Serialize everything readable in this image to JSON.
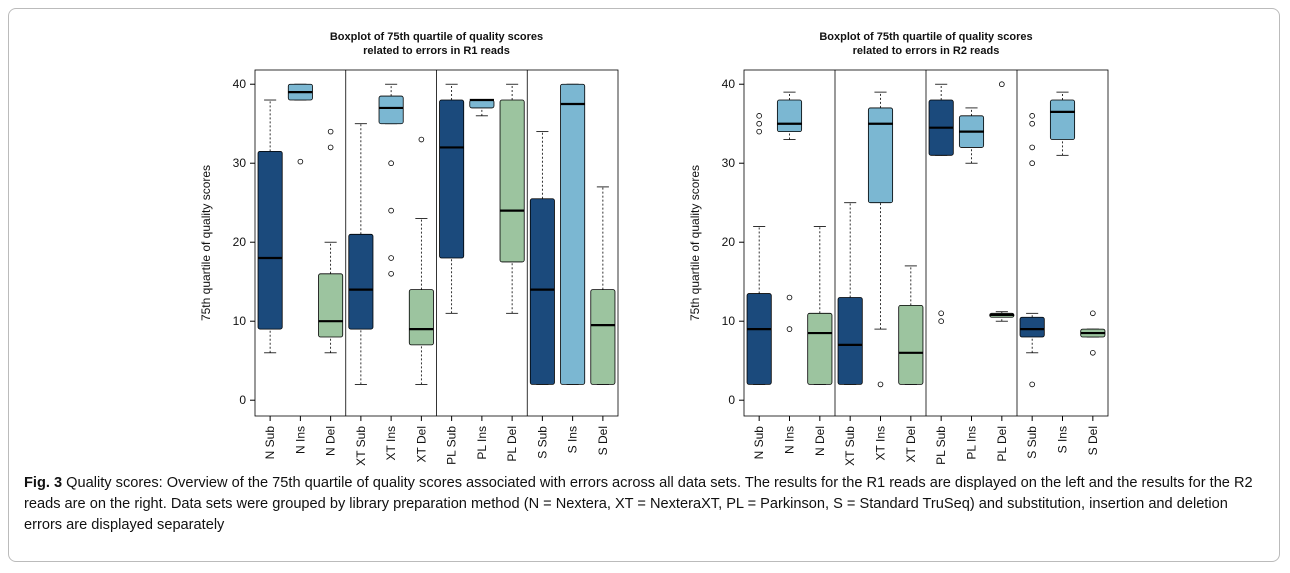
{
  "chart_data": [
    {
      "type": "box",
      "title": [
        "Boxplot of 75th quartile of quality scores",
        "related to errors in R1 reads"
      ],
      "ylabel": "75th quartile of quality scores",
      "categories": [
        "N Sub",
        "N Ins",
        "N Del",
        "XT Sub",
        "XT Ins",
        "XT Del",
        "PL Sub",
        "PL Ins",
        "PL Del",
        "S Sub",
        "S Ins",
        "S Del"
      ],
      "palette": [
        "#1b4a7c",
        "#7bb7d2",
        "#9cc49f"
      ],
      "ylim": [
        -2,
        41.8
      ],
      "yticks": [
        0,
        10,
        20,
        30,
        40
      ],
      "boxes": [
        {
          "min": 6,
          "q1": 9,
          "median": 18,
          "q3": 31.5,
          "max": 38,
          "outliers": []
        },
        {
          "min": 38,
          "q1": 38,
          "median": 39,
          "q3": 40,
          "max": 40,
          "outliers": [
            30.2
          ]
        },
        {
          "min": 6,
          "q1": 8,
          "median": 10,
          "q3": 16,
          "max": 20,
          "outliers": [
            32,
            34
          ]
        },
        {
          "min": 2,
          "q1": 9,
          "median": 14,
          "q3": 21,
          "max": 35,
          "outliers": []
        },
        {
          "min": 35,
          "q1": 35,
          "median": 37,
          "q3": 38.5,
          "max": 40,
          "outliers": [
            30,
            24,
            18,
            16
          ]
        },
        {
          "min": 2,
          "q1": 7,
          "median": 9,
          "q3": 14,
          "max": 23,
          "outliers": [
            33
          ]
        },
        {
          "min": 11,
          "q1": 18,
          "median": 32,
          "q3": 38,
          "max": 40,
          "outliers": []
        },
        {
          "min": 36,
          "q1": 37,
          "median": 38,
          "q3": 38,
          "max": 38,
          "outliers": []
        },
        {
          "min": 11,
          "q1": 17.5,
          "median": 24,
          "q3": 38,
          "max": 40,
          "outliers": []
        },
        {
          "min": 2,
          "q1": 2,
          "median": 14,
          "q3": 25.5,
          "max": 34,
          "outliers": []
        },
        {
          "min": 2,
          "q1": 2,
          "median": 37.5,
          "q3": 40,
          "max": 40,
          "outliers": []
        },
        {
          "min": 2,
          "q1": 2,
          "median": 9.5,
          "q3": 14,
          "max": 27,
          "outliers": []
        }
      ]
    },
    {
      "type": "box",
      "title": [
        "Boxplot of 75th quartile of quality scores",
        "related to errors in R2 reads"
      ],
      "ylabel": "75th quartile of quality scores",
      "categories": [
        "N Sub",
        "N Ins",
        "N Del",
        "XT Sub",
        "XT Ins",
        "XT Del",
        "PL Sub",
        "PL Ins",
        "PL Del",
        "S Sub",
        "S Ins",
        "S Del"
      ],
      "palette": [
        "#1b4a7c",
        "#7bb7d2",
        "#9cc49f"
      ],
      "ylim": [
        -2,
        41.8
      ],
      "yticks": [
        0,
        10,
        20,
        30,
        40
      ],
      "boxes": [
        {
          "min": 2,
          "q1": 2,
          "median": 9,
          "q3": 13.5,
          "max": 22,
          "outliers": [
            34,
            35,
            36
          ]
        },
        {
          "min": 33,
          "q1": 34,
          "median": 35,
          "q3": 38,
          "max": 39,
          "outliers": [
            13,
            9
          ]
        },
        {
          "min": 2,
          "q1": 2,
          "median": 8.5,
          "q3": 11,
          "max": 22,
          "outliers": []
        },
        {
          "min": 2,
          "q1": 2,
          "median": 7,
          "q3": 13,
          "max": 25,
          "outliers": []
        },
        {
          "min": 9,
          "q1": 25,
          "median": 35,
          "q3": 37,
          "max": 39,
          "outliers": [
            2
          ]
        },
        {
          "min": 2,
          "q1": 2,
          "median": 6,
          "q3": 12,
          "max": 17,
          "outliers": []
        },
        {
          "min": 31,
          "q1": 31,
          "median": 34.5,
          "q3": 38,
          "max": 40,
          "outliers": [
            10,
            11
          ]
        },
        {
          "min": 30,
          "q1": 32,
          "median": 34,
          "q3": 36,
          "max": 37,
          "outliers": []
        },
        {
          "min": 10,
          "q1": 10.5,
          "median": 10.8,
          "q3": 11,
          "max": 11.2,
          "outliers": [
            40
          ]
        },
        {
          "min": 6,
          "q1": 8,
          "median": 9,
          "q3": 10.5,
          "max": 11,
          "outliers": [
            30,
            32,
            35,
            36,
            2
          ]
        },
        {
          "min": 31,
          "q1": 33,
          "median": 36.5,
          "q3": 38,
          "max": 39,
          "outliers": []
        },
        {
          "min": 8,
          "q1": 8,
          "median": 8.5,
          "q3": 9,
          "max": 9,
          "outliers": [
            11,
            6
          ]
        }
      ]
    }
  ],
  "caption": {
    "label": "Fig. 3",
    "text": "Quality scores: Overview of the 75th quartile of quality scores associated with errors across all data sets. The results for the R1 reads are displayed on the left and the results for the R2 reads are on the right. Data sets were grouped by library preparation method (N = Nextera, XT = NexteraXT, PL = Parkinson, S = Standard TruSeq) and substitution, insertion and deletion errors are displayed separately"
  }
}
